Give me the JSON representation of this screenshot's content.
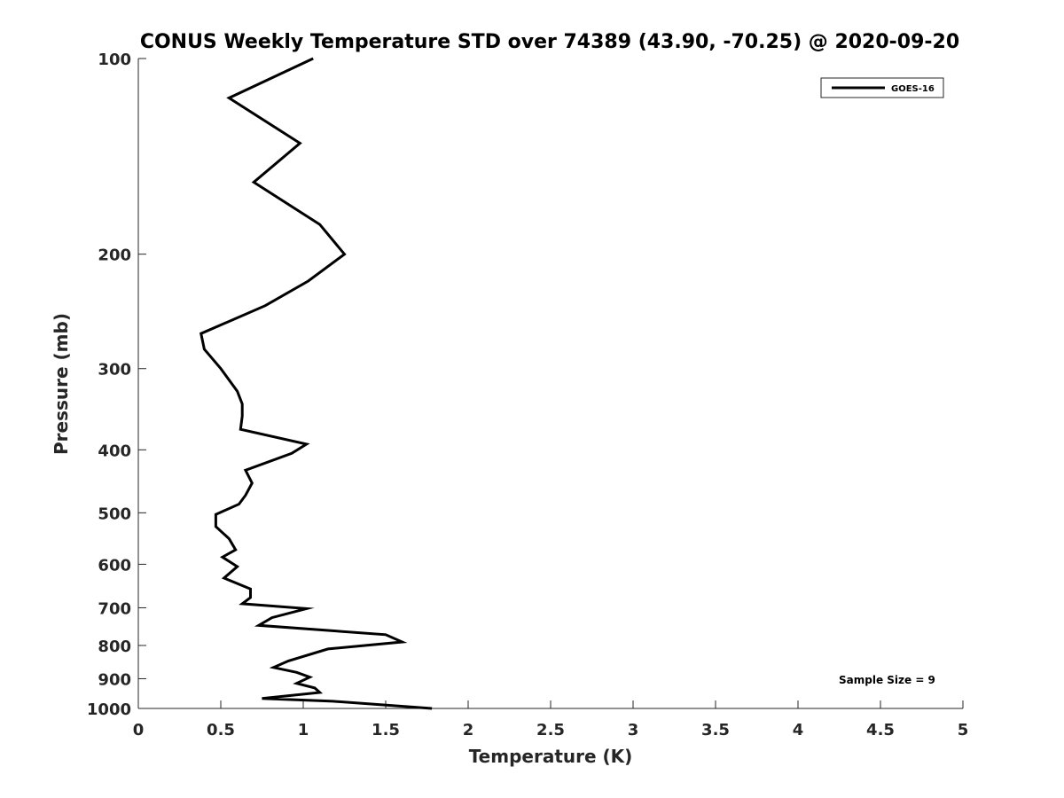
{
  "chart_data": {
    "type": "line",
    "title": "CONUS Weekly Temperature STD over 74389 (43.90, -70.25) @ 2020-09-20",
    "xlabel": "Temperature (K)",
    "ylabel": "Pressure (mb)",
    "xlim": [
      0,
      5
    ],
    "ylim": [
      100,
      1000
    ],
    "y_scale": "log",
    "y_reversed": true,
    "x_ticks": [
      0,
      0.5,
      1,
      1.5,
      2,
      2.5,
      3,
      3.5,
      4,
      4.5,
      5
    ],
    "x_tick_labels": [
      "0",
      "0.5",
      "1",
      "1.5",
      "2",
      "2.5",
      "3",
      "3.5",
      "4",
      "4.5",
      "5"
    ],
    "y_ticks": [
      100,
      200,
      300,
      400,
      500,
      600,
      700,
      800,
      900,
      1000
    ],
    "y_tick_labels": [
      "100",
      "200",
      "300",
      "400",
      "500",
      "600",
      "700",
      "800",
      "900",
      "1000"
    ],
    "grid": false,
    "legend_position": "top-right",
    "series": [
      {
        "name": "GOES-16",
        "color": "#000000",
        "points": [
          [
            1.06,
            100
          ],
          [
            0.55,
            115
          ],
          [
            0.98,
            135
          ],
          [
            0.7,
            155
          ],
          [
            1.1,
            180
          ],
          [
            1.25,
            200
          ],
          [
            1.03,
            220
          ],
          [
            0.77,
            240
          ],
          [
            0.38,
            265
          ],
          [
            0.4,
            280
          ],
          [
            0.5,
            300
          ],
          [
            0.6,
            325
          ],
          [
            0.63,
            340
          ],
          [
            0.63,
            355
          ],
          [
            0.62,
            372
          ],
          [
            1.02,
            392
          ],
          [
            0.93,
            405
          ],
          [
            0.65,
            430
          ],
          [
            0.69,
            450
          ],
          [
            0.65,
            470
          ],
          [
            0.61,
            485
          ],
          [
            0.47,
            503
          ],
          [
            0.47,
            525
          ],
          [
            0.55,
            548
          ],
          [
            0.59,
            570
          ],
          [
            0.51,
            585
          ],
          [
            0.6,
            605
          ],
          [
            0.52,
            630
          ],
          [
            0.68,
            655
          ],
          [
            0.68,
            675
          ],
          [
            0.63,
            690
          ],
          [
            1.02,
            702
          ],
          [
            0.81,
            725
          ],
          [
            0.73,
            745
          ],
          [
            1.5,
            770
          ],
          [
            1.6,
            790
          ],
          [
            1.15,
            810
          ],
          [
            0.91,
            845
          ],
          [
            0.82,
            865
          ],
          [
            0.96,
            880
          ],
          [
            1.04,
            895
          ],
          [
            0.96,
            915
          ],
          [
            1.07,
            930
          ],
          [
            1.1,
            945
          ],
          [
            0.75,
            965
          ],
          [
            1.18,
            975
          ],
          [
            1.78,
            1000
          ]
        ]
      }
    ],
    "annotations": [
      "Sample Size = 9"
    ]
  }
}
